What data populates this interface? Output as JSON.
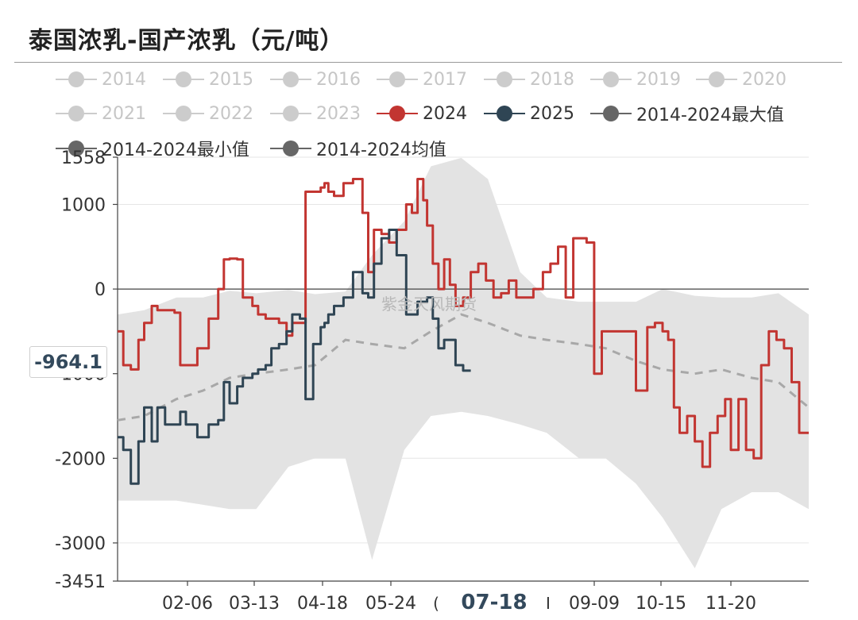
{
  "title": "泰国浓乳-国产浓乳（元/吨）",
  "watermark": "紫金天风期货",
  "pointer_value": "-964.1",
  "chart_data": {
    "type": "line",
    "title": "泰国浓乳-国产浓乳（元/吨）",
    "ylim": [
      -3451,
      1558
    ],
    "y_ticks": [
      "1558",
      "1000",
      "0",
      "-1000",
      "-2000",
      "-3000",
      "-3451"
    ],
    "x_ticks": [
      "02-06",
      "03-13",
      "04-18",
      "05-24",
      "07-18",
      "09-09",
      "10-15",
      "11-20"
    ],
    "x_ticks_partial": [
      "(",
      "I"
    ],
    "highlight_x": "07-18",
    "grid": true,
    "legend_position": "top",
    "legend": [
      {
        "name": "2014",
        "color": "#cccccc",
        "state": "off"
      },
      {
        "name": "2015",
        "color": "#cccccc",
        "state": "off"
      },
      {
        "name": "2016",
        "color": "#cccccc",
        "state": "off"
      },
      {
        "name": "2017",
        "color": "#cccccc",
        "state": "off"
      },
      {
        "name": "2018",
        "color": "#cccccc",
        "state": "off"
      },
      {
        "name": "2019",
        "color": "#cccccc",
        "state": "off"
      },
      {
        "name": "2020",
        "color": "#cccccc",
        "state": "off"
      },
      {
        "name": "2021",
        "color": "#cccccc",
        "state": "off"
      },
      {
        "name": "2022",
        "color": "#cccccc",
        "state": "off"
      },
      {
        "name": "2023",
        "color": "#cccccc",
        "state": "off"
      },
      {
        "name": "2024",
        "color": "#c23531",
        "state": "on"
      },
      {
        "name": "2025",
        "color": "#2f4554",
        "state": "on"
      },
      {
        "name": "2014-2024最大值",
        "color": "#666666",
        "state": "on"
      },
      {
        "name": "2014-2024最小值",
        "color": "#666666",
        "state": "on"
      },
      {
        "name": "2014-2024均值",
        "color": "#666666",
        "state": "on"
      }
    ],
    "series": [
      {
        "name": "2024",
        "color": "#c23531",
        "x": [
          "01-01",
          "01-04",
          "01-08",
          "01-12",
          "01-15",
          "01-19",
          "01-22",
          "01-26",
          "01-31",
          "02-03",
          "02-06",
          "02-12",
          "02-18",
          "02-23",
          "02-26",
          "03-01",
          "03-05",
          "03-08",
          "03-13",
          "03-16",
          "03-20",
          "03-23",
          "03-27",
          "03-31",
          "04-03",
          "04-07",
          "04-10",
          "04-14",
          "04-18",
          "04-20",
          "04-22",
          "04-25",
          "04-30",
          "05-05",
          "05-10",
          "05-13",
          "05-16",
          "05-20",
          "05-24",
          "05-28",
          "06-02",
          "06-05",
          "06-08",
          "06-11",
          "06-13",
          "06-16",
          "06-19",
          "06-22",
          "06-25",
          "06-28",
          "07-02",
          "07-06",
          "07-10",
          "07-14",
          "07-18",
          "07-22",
          "07-26",
          "07-30",
          "08-03",
          "08-08",
          "08-13",
          "08-17",
          "08-21",
          "08-25",
          "08-29",
          "09-01",
          "09-05",
          "09-09",
          "09-11",
          "09-13",
          "09-16",
          "09-20",
          "09-25",
          "10-01",
          "10-07",
          "10-11",
          "10-15",
          "10-18",
          "10-21",
          "10-24",
          "10-28",
          "11-01",
          "11-05",
          "11-09",
          "11-13",
          "11-17",
          "11-20",
          "11-24",
          "11-28",
          "12-02",
          "12-06",
          "12-10",
          "12-14",
          "12-18",
          "12-22",
          "12-26",
          "12-31"
        ],
        "y": [
          -500,
          -900,
          -950,
          -600,
          -400,
          -200,
          -250,
          -250,
          -280,
          -900,
          -900,
          -700,
          -350,
          0,
          350,
          360,
          350,
          -100,
          -200,
          -300,
          -350,
          -350,
          -400,
          -550,
          -400,
          -400,
          1150,
          1150,
          1200,
          1250,
          1150,
          1100,
          1250,
          1300,
          900,
          200,
          700,
          650,
          550,
          700,
          1000,
          900,
          1300,
          1050,
          750,
          300,
          0,
          350,
          50,
          -200,
          -100,
          200,
          300,
          100,
          -100,
          -50,
          100,
          -100,
          -100,
          0,
          200,
          300,
          500,
          -100,
          600,
          600,
          550,
          -1000,
          -1000,
          -500,
          -500,
          -500,
          -500,
          -1200,
          -450,
          -400,
          -500,
          -600,
          -1400,
          -1700,
          -1500,
          -1800,
          -2100,
          -1700,
          -1500,
          -1300,
          -1900,
          -1300,
          -1900,
          -2000,
          -900,
          -500,
          -600,
          -700,
          -1100,
          -1700,
          -1700
        ]
      },
      {
        "name": "2025",
        "color": "#2f4554",
        "x": [
          "01-01",
          "01-04",
          "01-08",
          "01-12",
          "01-15",
          "01-19",
          "01-22",
          "01-26",
          "01-31",
          "02-03",
          "02-06",
          "02-12",
          "02-18",
          "02-23",
          "02-26",
          "03-01",
          "03-05",
          "03-08",
          "03-13",
          "03-16",
          "03-20",
          "03-23",
          "03-27",
          "03-31",
          "04-03",
          "04-07",
          "04-10",
          "04-14",
          "04-18",
          "04-20",
          "04-22",
          "04-25",
          "04-30",
          "05-05",
          "05-10",
          "05-13",
          "05-16",
          "05-20",
          "05-24",
          "05-28",
          "06-02",
          "06-05",
          "06-08",
          "06-11",
          "06-13",
          "06-16",
          "06-19",
          "06-22",
          "06-25",
          "06-28",
          "07-02",
          "07-06"
        ],
        "y": [
          -1750,
          -1900,
          -2300,
          -1800,
          -1400,
          -1800,
          -1400,
          -1600,
          -1600,
          -1450,
          -1600,
          -1750,
          -1600,
          -1550,
          -1100,
          -1350,
          -1150,
          -1050,
          -1000,
          -950,
          -900,
          -700,
          -650,
          -500,
          -300,
          -350,
          -1300,
          -650,
          -450,
          -400,
          -300,
          -200,
          -100,
          200,
          -50,
          -100,
          300,
          600,
          700,
          400,
          -300,
          -300,
          -150,
          -150,
          -100,
          -350,
          -700,
          -600,
          -600,
          -900,
          -964.1,
          -964.1
        ]
      },
      {
        "name": "2014-2024最大值",
        "color": "#666666",
        "x": [
          "01-01",
          "01-15",
          "02-01",
          "02-15",
          "03-01",
          "03-15",
          "04-01",
          "04-15",
          "05-01",
          "05-15",
          "06-01",
          "06-15",
          "07-01",
          "07-15",
          "08-01",
          "08-15",
          "09-01",
          "09-15",
          "10-01",
          "10-15",
          "11-01",
          "11-15",
          "12-01",
          "12-15",
          "12-31"
        ],
        "y": [
          -300,
          -250,
          -100,
          -100,
          -20,
          -50,
          -10,
          -60,
          -30,
          400,
          800,
          1450,
          1550,
          1300,
          200,
          -100,
          -150,
          -150,
          -150,
          0,
          -80,
          -100,
          -100,
          -50,
          -300
        ]
      },
      {
        "name": "2014-2024最小值",
        "color": "#666666",
        "x": [
          "01-01",
          "01-15",
          "02-01",
          "02-15",
          "03-01",
          "03-15",
          "04-01",
          "04-15",
          "05-01",
          "05-15",
          "06-01",
          "06-15",
          "07-01",
          "07-15",
          "08-01",
          "08-15",
          "09-01",
          "09-15",
          "10-01",
          "10-15",
          "11-01",
          "11-15",
          "12-01",
          "12-15",
          "12-31"
        ],
        "y": [
          -2500,
          -2500,
          -2500,
          -2550,
          -2600,
          -2600,
          -2100,
          -2000,
          -2000,
          -3200,
          -1900,
          -1500,
          -1450,
          -1500,
          -1600,
          -1700,
          -2000,
          -2000,
          -2300,
          -2700,
          -3300,
          -2600,
          -2400,
          -2400,
          -2600
        ]
      },
      {
        "name": "2014-2024均值",
        "color": "#666666",
        "x": [
          "01-01",
          "01-15",
          "02-01",
          "02-15",
          "03-01",
          "03-15",
          "04-01",
          "04-15",
          "05-01",
          "05-15",
          "06-01",
          "06-15",
          "07-01",
          "07-15",
          "08-01",
          "08-15",
          "09-01",
          "09-15",
          "10-01",
          "10-15",
          "11-01",
          "11-15",
          "12-01",
          "12-15",
          "12-31"
        ],
        "y": [
          -1550,
          -1500,
          -1300,
          -1200,
          -1050,
          -1000,
          -950,
          -900,
          -600,
          -650,
          -700,
          -500,
          -300,
          -400,
          -550,
          -600,
          -650,
          -700,
          -850,
          -950,
          -1000,
          -950,
          -1050,
          -1100,
          -1400
        ]
      }
    ]
  }
}
